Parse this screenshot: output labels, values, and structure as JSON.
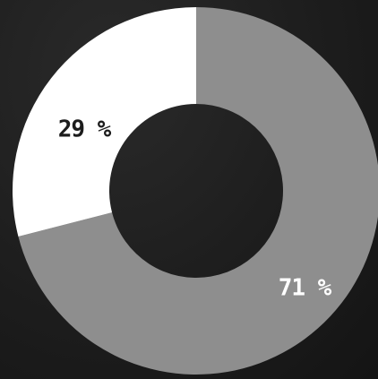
{
  "chart_data": {
    "type": "pie",
    "variant": "donut",
    "slices": [
      {
        "value": 71,
        "label": "71 %",
        "color": "#8e8e8e",
        "label_color": "#ffffff"
      },
      {
        "value": 29,
        "label": "29 %",
        "color": "#ffffff",
        "label_color": "#1c1c1c"
      }
    ],
    "background_color": "#1c1c1c"
  }
}
